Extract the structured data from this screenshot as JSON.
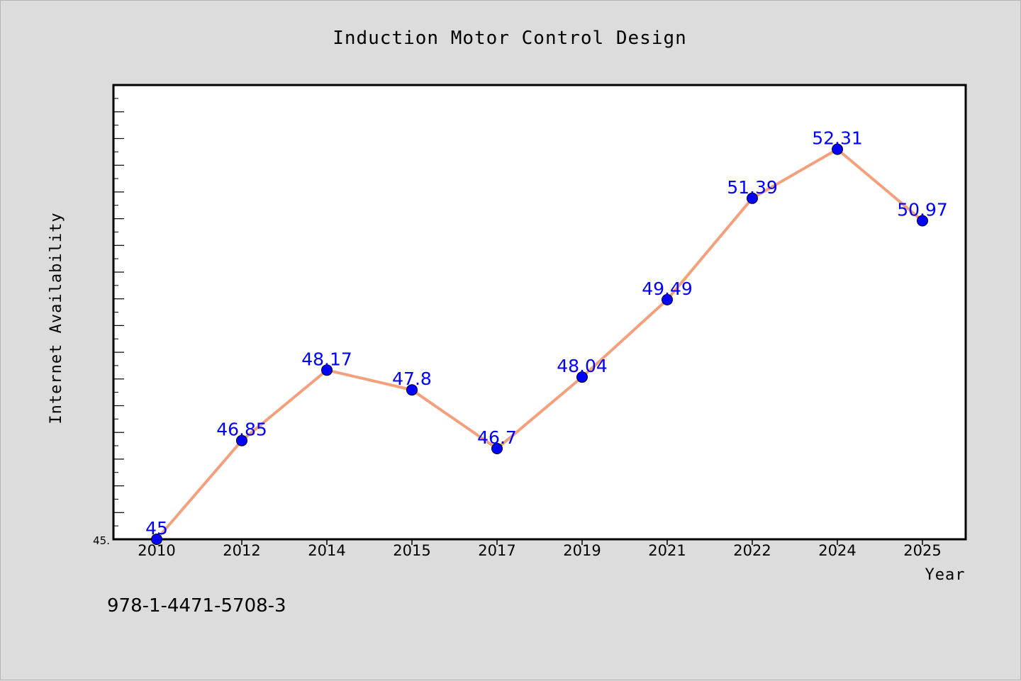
{
  "chart_data": {
    "type": "line",
    "title": "Induction Motor Control Design",
    "xlabel": "Year",
    "ylabel": "Internet Availability",
    "categories": [
      "2010",
      "2012",
      "2014",
      "2015",
      "2017",
      "2019",
      "2021",
      "2022",
      "2024",
      "2025"
    ],
    "series": [
      {
        "values": [
          45,
          46.85,
          48.17,
          47.8,
          46.7,
          48.04,
          49.49,
          51.39,
          52.31,
          50.97
        ],
        "data_labels": [
          "45",
          "46.85",
          "48.17",
          "47.8",
          "46.7",
          "48.04",
          "49.49",
          "51.39",
          "52.31",
          "50.97"
        ],
        "line_color": "#f4a07c",
        "marker_color": "#0000ff"
      }
    ],
    "ytick_labels": [
      "45."
    ],
    "ylim": [
      45,
      53.5
    ],
    "grid": false,
    "legend": "none"
  },
  "footnote": "978-1-4471-5708-3",
  "colors": {
    "background": "#dcdcdc",
    "plot_area": "#ffffff",
    "line": "#f4a07c",
    "marker": "#0000ff",
    "data_label": "#0000ff"
  }
}
